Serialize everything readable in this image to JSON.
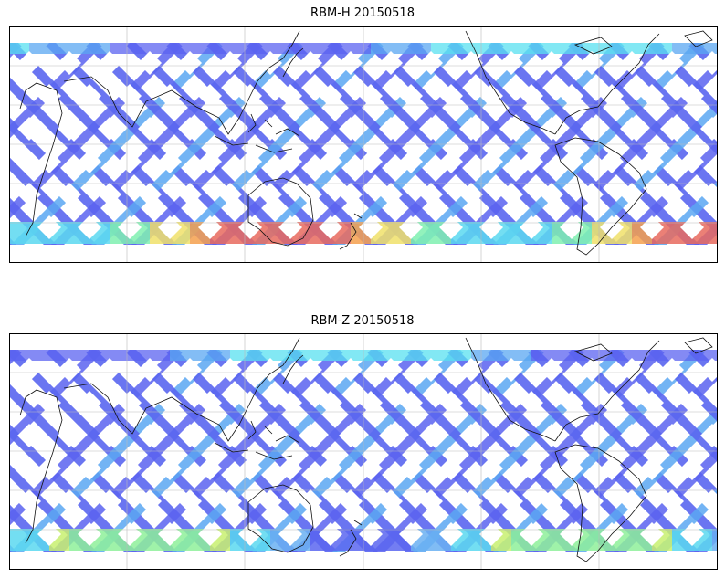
{
  "maps": [
    {
      "title": "RBM-H 20150518",
      "palette": [
        "#5b63f0",
        "#5aa7f2",
        "#58e0f0",
        "#7cf08a",
        "#f7f06b",
        "#f7b04a",
        "#e85f5f"
      ],
      "swath_color": "#5a66f0",
      "band_colors": [
        "#e86a5e",
        "#f4a04e",
        "#f0e06a",
        "#7ff0b0",
        "#5ad8f0"
      ]
    },
    {
      "title": "RBM-Z 20150518",
      "palette": [
        "#5b63f0",
        "#5aa7f2",
        "#58e0f0",
        "#7cf08a",
        "#f7f06b"
      ],
      "swath_color": "#5a66f0",
      "band_colors": [
        "#8ef09a",
        "#c8f070",
        "#5ad8f0",
        "#6ab0f2",
        "#5a66f0"
      ]
    }
  ]
}
